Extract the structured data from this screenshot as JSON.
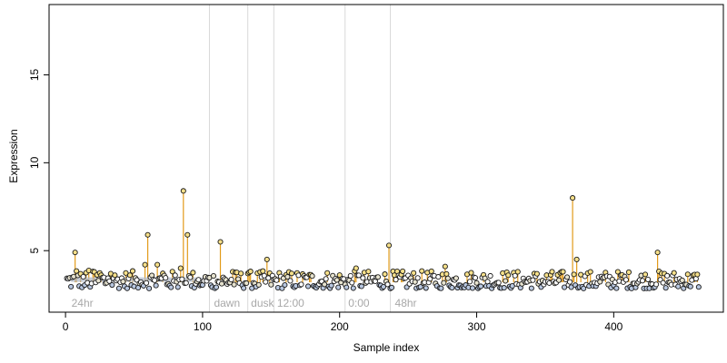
{
  "chart_data": {
    "type": "scatter",
    "title": "",
    "xlabel": "Sample index",
    "ylabel": "Expression",
    "xlim": [
      -12,
      480
    ],
    "ylim": [
      1.5,
      19.0
    ],
    "x_ticks": [
      0,
      100,
      200,
      300,
      400
    ],
    "y_ticks": [
      5,
      10,
      15
    ],
    "grid": false,
    "baseline": 3.2,
    "vertical_markers": [
      105,
      133,
      152,
      204,
      237
    ],
    "annotations": [
      {
        "x": 3,
        "label": "24hr"
      },
      {
        "x": 107,
        "label": "dawn"
      },
      {
        "x": 134,
        "label": "dusk"
      },
      {
        "x": 153,
        "label": "12:00"
      },
      {
        "x": 205,
        "label": "0:00"
      },
      {
        "x": 239,
        "label": "48hr"
      }
    ],
    "highlight_points": [
      {
        "x": 7,
        "y": 4.9
      },
      {
        "x": 60,
        "y": 5.9
      },
      {
        "x": 58,
        "y": 4.2
      },
      {
        "x": 67,
        "y": 4.2
      },
      {
        "x": 86,
        "y": 8.4
      },
      {
        "x": 89,
        "y": 5.9
      },
      {
        "x": 113,
        "y": 5.5
      },
      {
        "x": 147,
        "y": 4.5
      },
      {
        "x": 236,
        "y": 5.3
      },
      {
        "x": 277,
        "y": 4.1
      },
      {
        "x": 370,
        "y": 8.0
      },
      {
        "x": 373,
        "y": 4.5
      },
      {
        "x": 432,
        "y": 4.9
      },
      {
        "x": 212,
        "y": 4.0
      },
      {
        "x": 84,
        "y": 4.0
      },
      {
        "x": 122,
        "y": 3.8
      },
      {
        "x": 133,
        "y": 3.7
      }
    ],
    "n_samples": 462,
    "noise_band": [
      2.85,
      3.85
    ]
  }
}
